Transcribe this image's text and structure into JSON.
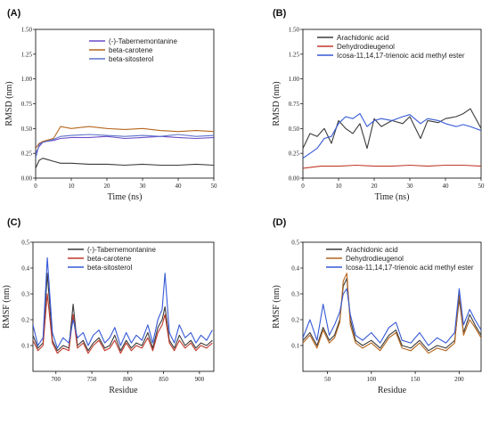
{
  "figure": {
    "panels": [
      "(A)",
      "(B)",
      "(C)",
      "(D)"
    ]
  },
  "colors": {
    "purple": "#6a4cc9",
    "brown": "#b5651d",
    "blue_green": "#5c73c8",
    "dark": "#3b3b3b",
    "red": "#c0392b",
    "blue": "#3559d6"
  },
  "chart_data": [
    {
      "type": "line",
      "panel": "(A)",
      "xlabel": "Time (ns)",
      "ylabel": "RMSD (nm)",
      "xlim": [
        0,
        50
      ],
      "ylim": [
        0,
        1.5
      ],
      "xticks": [
        0,
        10,
        20,
        30,
        40,
        50
      ],
      "yticks": [
        0.0,
        0.25,
        0.5,
        0.75,
        1.0,
        1.25,
        1.5
      ],
      "legend": "top-center",
      "series": [
        {
          "name": "(-)-Tabernemontanine",
          "color": "#6a4cc9",
          "x": [
            0,
            1,
            2,
            3,
            5,
            7,
            10,
            15,
            20,
            25,
            30,
            35,
            40,
            45,
            50
          ],
          "y": [
            0.25,
            0.32,
            0.36,
            0.37,
            0.38,
            0.4,
            0.41,
            0.41,
            0.42,
            0.4,
            0.41,
            0.42,
            0.41,
            0.4,
            0.41
          ]
        },
        {
          "name": "beta-carotene",
          "color": "#b5651d",
          "x": [
            0,
            1,
            2,
            3,
            5,
            7,
            10,
            15,
            20,
            25,
            30,
            35,
            40,
            45,
            50
          ],
          "y": [
            0.3,
            0.35,
            0.37,
            0.38,
            0.4,
            0.52,
            0.5,
            0.52,
            0.5,
            0.49,
            0.5,
            0.48,
            0.47,
            0.48,
            0.47
          ]
        },
        {
          "name": "beta-sitosterol",
          "color": "#5c73c8",
          "x": [
            0,
            1,
            2,
            3,
            5,
            7,
            10,
            15,
            20,
            25,
            30,
            35,
            40,
            45,
            50
          ],
          "y": [
            0.2,
            0.34,
            0.36,
            0.37,
            0.39,
            0.42,
            0.43,
            0.44,
            0.43,
            0.42,
            0.43,
            0.42,
            0.44,
            0.42,
            0.43
          ]
        },
        {
          "name": "",
          "color": "#3b3b3b",
          "x": [
            0,
            1,
            2,
            3,
            5,
            7,
            10,
            15,
            20,
            25,
            30,
            35,
            40,
            45,
            50
          ],
          "y": [
            0.1,
            0.18,
            0.2,
            0.19,
            0.17,
            0.15,
            0.15,
            0.14,
            0.14,
            0.13,
            0.14,
            0.13,
            0.13,
            0.14,
            0.13
          ]
        }
      ]
    },
    {
      "type": "line",
      "panel": "(B)",
      "xlabel": "Time (ns)",
      "ylabel": "RMSD (nm)",
      "xlim": [
        0,
        50
      ],
      "ylim": [
        0,
        1.5
      ],
      "xticks": [
        0,
        10,
        20,
        30,
        40,
        50
      ],
      "yticks": [
        0.0,
        0.25,
        0.5,
        0.75,
        1.0,
        1.25,
        1.5
      ],
      "legend": "top-center",
      "series": [
        {
          "name": "Arachidonic acid",
          "color": "#3b3b3b",
          "x": [
            0,
            2,
            4,
            6,
            8,
            10,
            12,
            14,
            16,
            18,
            20,
            22,
            25,
            28,
            30,
            33,
            35,
            38,
            40,
            43,
            45,
            47,
            50
          ],
          "y": [
            0.3,
            0.45,
            0.42,
            0.5,
            0.35,
            0.58,
            0.5,
            0.45,
            0.55,
            0.3,
            0.6,
            0.52,
            0.58,
            0.55,
            0.62,
            0.4,
            0.58,
            0.56,
            0.6,
            0.62,
            0.65,
            0.7,
            0.5
          ]
        },
        {
          "name": "Dehydrodieugenol",
          "color": "#c0392b",
          "x": [
            0,
            5,
            10,
            15,
            20,
            25,
            30,
            35,
            40,
            45,
            50
          ],
          "y": [
            0.1,
            0.12,
            0.12,
            0.13,
            0.12,
            0.12,
            0.13,
            0.12,
            0.13,
            0.13,
            0.12
          ]
        },
        {
          "name": "Icosa-11,14,17-trienoic acid methyl ester",
          "color": "#3559d6",
          "x": [
            0,
            2,
            4,
            6,
            8,
            10,
            12,
            14,
            16,
            18,
            20,
            22,
            25,
            28,
            30,
            33,
            35,
            38,
            40,
            43,
            45,
            47,
            50
          ],
          "y": [
            0.2,
            0.25,
            0.3,
            0.4,
            0.42,
            0.55,
            0.62,
            0.6,
            0.65,
            0.52,
            0.58,
            0.6,
            0.58,
            0.62,
            0.64,
            0.55,
            0.6,
            0.58,
            0.55,
            0.52,
            0.54,
            0.52,
            0.48
          ]
        }
      ]
    },
    {
      "type": "line",
      "panel": "(C)",
      "xlabel": "Residue",
      "ylabel": "RMSF (nm)",
      "xlim": [
        668,
        920
      ],
      "ylim": [
        0,
        0.5
      ],
      "xticks": [
        700,
        750,
        800,
        850,
        900
      ],
      "yticks": [
        0.1,
        0.2,
        0.3,
        0.4,
        0.5
      ],
      "legend": "top-center",
      "series": [
        {
          "name": "(-)-Tabernemontanine",
          "color": "#3b3b3b",
          "x": [
            668,
            675,
            682,
            688,
            695,
            702,
            710,
            718,
            724,
            730,
            738,
            745,
            752,
            760,
            768,
            775,
            782,
            790,
            798,
            805,
            812,
            820,
            828,
            835,
            842,
            848,
            852,
            858,
            865,
            872,
            880,
            888,
            895,
            902,
            910,
            918
          ],
          "y": [
            0.14,
            0.09,
            0.11,
            0.38,
            0.12,
            0.08,
            0.1,
            0.09,
            0.26,
            0.1,
            0.12,
            0.08,
            0.11,
            0.13,
            0.09,
            0.1,
            0.14,
            0.08,
            0.12,
            0.09,
            0.11,
            0.1,
            0.15,
            0.09,
            0.17,
            0.2,
            0.25,
            0.12,
            0.09,
            0.14,
            0.1,
            0.12,
            0.09,
            0.11,
            0.1,
            0.12
          ]
        },
        {
          "name": "beta-carotene",
          "color": "#c0392b",
          "x": [
            668,
            675,
            682,
            688,
            695,
            702,
            710,
            718,
            724,
            730,
            738,
            745,
            752,
            760,
            768,
            775,
            782,
            790,
            798,
            805,
            812,
            820,
            828,
            835,
            842,
            848,
            852,
            858,
            865,
            872,
            880,
            888,
            895,
            902,
            910,
            918
          ],
          "y": [
            0.12,
            0.08,
            0.1,
            0.3,
            0.11,
            0.07,
            0.09,
            0.08,
            0.22,
            0.09,
            0.11,
            0.07,
            0.1,
            0.12,
            0.08,
            0.09,
            0.12,
            0.07,
            0.11,
            0.08,
            0.1,
            0.09,
            0.13,
            0.08,
            0.15,
            0.18,
            0.22,
            0.11,
            0.08,
            0.12,
            0.09,
            0.11,
            0.08,
            0.1,
            0.09,
            0.11
          ]
        },
        {
          "name": "beta-sitosterol",
          "color": "#3559d6",
          "x": [
            668,
            675,
            682,
            688,
            695,
            702,
            710,
            718,
            724,
            730,
            738,
            745,
            752,
            760,
            768,
            775,
            782,
            790,
            798,
            805,
            812,
            820,
            828,
            835,
            842,
            848,
            852,
            858,
            865,
            872,
            880,
            888,
            895,
            902,
            910,
            918
          ],
          "y": [
            0.18,
            0.1,
            0.13,
            0.44,
            0.15,
            0.09,
            0.13,
            0.11,
            0.2,
            0.13,
            0.15,
            0.1,
            0.14,
            0.16,
            0.11,
            0.13,
            0.17,
            0.1,
            0.15,
            0.11,
            0.14,
            0.12,
            0.18,
            0.11,
            0.2,
            0.24,
            0.38,
            0.15,
            0.11,
            0.18,
            0.13,
            0.15,
            0.11,
            0.14,
            0.12,
            0.16
          ]
        }
      ]
    },
    {
      "type": "line",
      "panel": "(D)",
      "xlabel": "Residue",
      "ylabel": "RMSF (nm)",
      "xlim": [
        22,
        225
      ],
      "ylim": [
        0,
        0.5
      ],
      "xticks": [
        50,
        100,
        150,
        200
      ],
      "yticks": [
        0.1,
        0.2,
        0.3,
        0.4,
        0.5
      ],
      "legend": "top-center",
      "series": [
        {
          "name": "Arachidonic acid",
          "color": "#3b3b3b",
          "x": [
            22,
            30,
            38,
            45,
            52,
            58,
            64,
            68,
            72,
            76,
            82,
            90,
            100,
            110,
            120,
            128,
            135,
            145,
            155,
            165,
            175,
            185,
            195,
            200,
            205,
            212,
            218,
            225
          ],
          "y": [
            0.12,
            0.15,
            0.1,
            0.17,
            0.12,
            0.14,
            0.2,
            0.33,
            0.36,
            0.2,
            0.12,
            0.1,
            0.12,
            0.09,
            0.14,
            0.16,
            0.1,
            0.09,
            0.12,
            0.08,
            0.1,
            0.09,
            0.12,
            0.28,
            0.15,
            0.22,
            0.18,
            0.14
          ]
        },
        {
          "name": "Dehydrodieugenol",
          "color": "#b5651d",
          "x": [
            22,
            30,
            38,
            45,
            52,
            58,
            64,
            68,
            72,
            76,
            82,
            90,
            100,
            110,
            120,
            128,
            135,
            145,
            155,
            165,
            175,
            185,
            195,
            200,
            205,
            212,
            218,
            225
          ],
          "y": [
            0.11,
            0.14,
            0.09,
            0.16,
            0.11,
            0.13,
            0.19,
            0.35,
            0.38,
            0.18,
            0.11,
            0.09,
            0.11,
            0.08,
            0.13,
            0.15,
            0.09,
            0.08,
            0.11,
            0.07,
            0.09,
            0.08,
            0.11,
            0.3,
            0.14,
            0.2,
            0.17,
            0.13
          ]
        },
        {
          "name": "Icosa-11,14,17-trienoic acid methyl ester",
          "color": "#3559d6",
          "x": [
            22,
            30,
            38,
            45,
            52,
            58,
            64,
            68,
            72,
            76,
            82,
            90,
            100,
            110,
            120,
            128,
            135,
            145,
            155,
            165,
            175,
            185,
            195,
            200,
            205,
            212,
            218,
            225
          ],
          "y": [
            0.13,
            0.2,
            0.12,
            0.26,
            0.14,
            0.18,
            0.23,
            0.3,
            0.32,
            0.22,
            0.14,
            0.12,
            0.15,
            0.11,
            0.17,
            0.19,
            0.12,
            0.11,
            0.15,
            0.1,
            0.13,
            0.11,
            0.15,
            0.32,
            0.18,
            0.24,
            0.2,
            0.16
          ]
        }
      ]
    }
  ]
}
